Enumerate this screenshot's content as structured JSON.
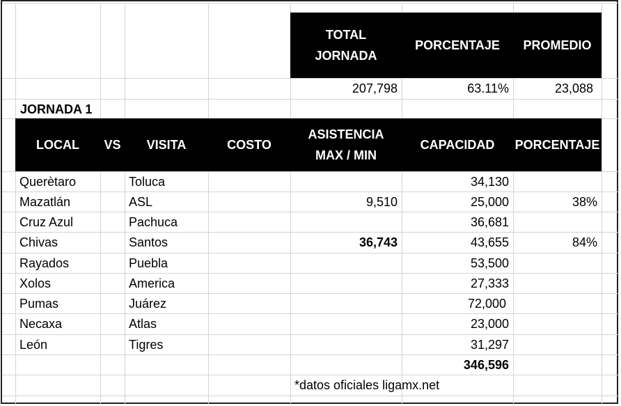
{
  "summary": {
    "headers": [
      "TOTAL\nJORNADA",
      "PORCENTAJE",
      "PROMEDIO"
    ],
    "values": [
      "207,798",
      "63.11%",
      "23,088"
    ]
  },
  "section_title": "JORNADA 1",
  "table": {
    "headers": [
      "LOCAL",
      "VS",
      "VISITA",
      "COSTO",
      "ASISTENCIA\nMAX / MIN",
      "CAPACIDAD",
      "PORCENTAJE"
    ],
    "rows": [
      {
        "local": "Querètaro",
        "visita": "Toluca",
        "asistencia": "",
        "capacidad": "34,130",
        "porcentaje": ""
      },
      {
        "local": "Mazatlán",
        "visita": "ASL",
        "asistencia": "9,510",
        "capacidad": "25,000",
        "porcentaje": "38%"
      },
      {
        "local": "Cruz Azul",
        "visita": "Pachuca",
        "asistencia": "",
        "capacidad": "36,681",
        "porcentaje": ""
      },
      {
        "local": "Chivas",
        "visita": "Santos",
        "asistencia": "36,743",
        "capacidad": "43,655",
        "porcentaje": "84%"
      },
      {
        "local": "Rayados",
        "visita": "Puebla",
        "asistencia": "",
        "capacidad": "53,500",
        "porcentaje": ""
      },
      {
        "local": "Xolos",
        "visita": "America",
        "asistencia": "",
        "capacidad": "27,333",
        "porcentaje": ""
      },
      {
        "local": "Pumas",
        "visita": "Juárez",
        "asistencia": "",
        "capacidad": "72,000",
        "porcentaje": ""
      },
      {
        "local": "Necaxa",
        "visita": "Atlas",
        "asistencia": "",
        "capacidad": "23,000",
        "porcentaje": ""
      },
      {
        "local": "León",
        "visita": "Tigres",
        "asistencia": "",
        "capacidad": "31,297",
        "porcentaje": ""
      }
    ],
    "total_capacidad": "346,596"
  },
  "footnote": "*datos oficiales ligamx.net"
}
